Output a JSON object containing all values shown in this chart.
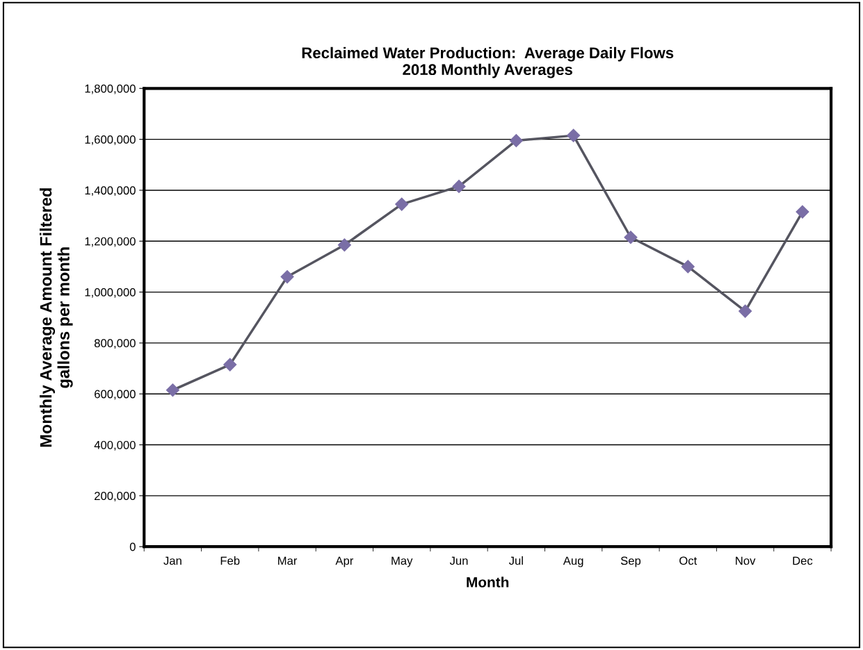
{
  "chart_data": {
    "type": "line",
    "title": "Reclaimed Water Production:  Average Daily Flows\n2018 Monthly Averages",
    "xlabel": "Month",
    "ylabel": "Monthly Average Amount Filtered\ngallons per month",
    "categories": [
      "Jan",
      "Feb",
      "Mar",
      "Apr",
      "May",
      "Jun",
      "Jul",
      "Aug",
      "Sep",
      "Oct",
      "Nov",
      "Dec"
    ],
    "series": [
      {
        "color": "#7a6ea6",
        "values": [
          615000,
          715000,
          1060000,
          1185000,
          1345000,
          1415000,
          1595000,
          1615000,
          1215000,
          1100000,
          925000,
          1315000
        ]
      }
    ],
    "ylim": [
      0,
      1800000
    ],
    "yticks": [
      {
        "value": 0,
        "label": "0"
      },
      {
        "value": 200000,
        "label": "200,000"
      },
      {
        "value": 400000,
        "label": "400,000"
      },
      {
        "value": 600000,
        "label": "600,000"
      },
      {
        "value": 800000,
        "label": "800,000"
      },
      {
        "value": 1000000,
        "label": "1,000,000"
      },
      {
        "value": 1200000,
        "label": "1,200,000"
      },
      {
        "value": 1400000,
        "label": "1,400,000"
      },
      {
        "value": 1600000,
        "label": "1,600,000"
      },
      {
        "value": 1800000,
        "label": "1,800,000"
      }
    ],
    "grid": "y",
    "marker": "diamond",
    "line_style": "solid"
  }
}
